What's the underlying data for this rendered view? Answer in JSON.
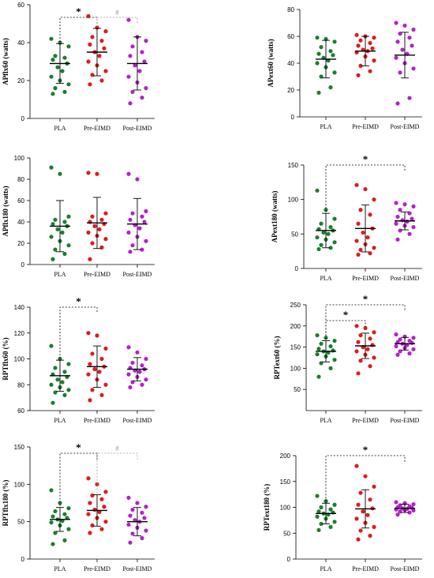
{
  "palette": {
    "PLA": "#1a7f2e",
    "Pre-EIMD": "#e01b1b",
    "Post-EIMD": "#b322c9"
  },
  "chart_data": [
    {
      "type": "scatter",
      "ylabel": "APflx60 (watts)",
      "categories": [
        "PLA",
        "Pre-EIMD",
        "Post-EIMD"
      ],
      "ylim": [
        0,
        60
      ],
      "yticks": [
        0,
        20,
        40,
        60
      ],
      "series": [
        {
          "values": [
            42,
            40,
            38,
            33,
            32,
            31,
            29,
            27,
            25,
            22,
            20,
            18,
            16,
            14,
            13
          ]
        },
        {
          "values": [
            54,
            48,
            46,
            43,
            41,
            39,
            37,
            35,
            33,
            30,
            28,
            25,
            23,
            20,
            18
          ]
        },
        {
          "values": [
            52,
            43,
            41,
            38,
            35,
            33,
            30,
            28,
            25,
            22,
            19,
            16,
            14,
            11,
            8
          ]
        }
      ],
      "mean": [
        29,
        35,
        29
      ],
      "sd": [
        10.5,
        12.5,
        14.0
      ],
      "annotations": [
        {
          "from": 0,
          "to": 1,
          "label": "*",
          "style": "star"
        },
        {
          "from": 1,
          "to": 2,
          "label": "#",
          "style": "hash"
        }
      ]
    },
    {
      "type": "scatter",
      "ylabel": "APext60 (watts)",
      "categories": [
        "PLA",
        "Pre-EIMD",
        "Post-EIMD"
      ],
      "ylim": [
        0,
        80
      ],
      "yticks": [
        0,
        20,
        40,
        60,
        80
      ],
      "series": [
        {
          "values": [
            59,
            58,
            56,
            52,
            49,
            47,
            46,
            44,
            42,
            40,
            37,
            33,
            30,
            22,
            18
          ]
        },
        {
          "values": [
            61,
            60,
            59,
            57,
            55,
            53,
            51,
            50,
            49,
            48,
            45,
            42,
            38,
            34,
            31
          ]
        },
        {
          "values": [
            70,
            68,
            65,
            62,
            59,
            56,
            53,
            50,
            47,
            44,
            40,
            36,
            33,
            14,
            10
          ]
        }
      ],
      "mean": [
        43,
        49,
        46
      ],
      "sd": [
        14.0,
        11.0,
        17.0
      ],
      "annotations": []
    },
    {
      "type": "scatter",
      "ylabel": "APflx180 (watts)",
      "categories": [
        "PLA",
        "Pre-EIMD",
        "Post-EIMD"
      ],
      "ylim": [
        0,
        100
      ],
      "yticks": [
        0,
        20,
        40,
        60,
        80,
        100
      ],
      "series": [
        {
          "values": [
            91,
            85,
            45,
            42,
            40,
            38,
            36,
            33,
            30,
            26,
            22,
            18,
            14,
            10,
            5
          ]
        },
        {
          "values": [
            86,
            85,
            48,
            45,
            42,
            40,
            38,
            36,
            33,
            30,
            27,
            24,
            20,
            16,
            5
          ]
        },
        {
          "values": [
            85,
            80,
            50,
            48,
            45,
            42,
            40,
            37,
            34,
            30,
            26,
            22,
            18,
            14,
            12
          ]
        }
      ],
      "mean": [
        36,
        39,
        38
      ],
      "sd": [
        24.0,
        24.0,
        24.0
      ],
      "annotations": []
    },
    {
      "type": "scatter",
      "ylabel": "APext180 (watts)",
      "categories": [
        "PLA",
        "Pre-EIMD",
        "Post-EIMD"
      ],
      "ylim": [
        0,
        150
      ],
      "yticks": [
        0,
        50,
        100,
        150
      ],
      "series": [
        {
          "values": [
            113,
            85,
            72,
            65,
            60,
            57,
            55,
            52,
            50,
            45,
            42,
            38,
            34,
            30,
            28
          ]
        },
        {
          "values": [
            121,
            115,
            100,
            85,
            78,
            65,
            58,
            52,
            45,
            40,
            35,
            30,
            27,
            22,
            20
          ]
        },
        {
          "values": [
            95,
            93,
            90,
            85,
            80,
            75,
            72,
            70,
            68,
            65,
            62,
            60,
            55,
            50,
            42
          ]
        }
      ],
      "mean": [
        55,
        58,
        69
      ],
      "sd": [
        25.0,
        34.0,
        13.0
      ],
      "annotations": [
        {
          "from": 0,
          "to": 2,
          "label": "*",
          "style": "star"
        }
      ]
    },
    {
      "type": "scatter",
      "ylabel": "RPTflx60 (%)",
      "categories": [
        "PLA",
        "Pre-EIMD",
        "Post-EIMD"
      ],
      "ylim": [
        60,
        140
      ],
      "yticks": [
        60,
        80,
        100,
        120,
        140
      ],
      "series": [
        {
          "values": [
            110,
            100,
            96,
            93,
            90,
            88,
            86,
            84,
            82,
            80,
            78,
            76,
            74,
            72,
            66
          ]
        },
        {
          "values": [
            120,
            118,
            108,
            104,
            100,
            96,
            94,
            92,
            90,
            88,
            84,
            80,
            76,
            72,
            68
          ]
        },
        {
          "values": [
            109,
            105,
            100,
            97,
            95,
            93,
            92,
            91,
            90,
            88,
            86,
            84,
            82,
            80,
            78
          ]
        }
      ],
      "mean": [
        87,
        94,
        92
      ],
      "sd": [
        12.0,
        16.0,
        9.0
      ],
      "annotations": [
        {
          "from": 0,
          "to": 1,
          "label": "*",
          "style": "star"
        }
      ]
    },
    {
      "type": "scatter",
      "ylabel": "RPText60 (%)",
      "categories": [
        "PLA",
        "Pre-EIMD",
        "Post-EIMD"
      ],
      "ylim": [
        0,
        250
      ],
      "yticks": [
        50,
        100,
        150,
        200,
        250
      ],
      "series": [
        {
          "values": [
            178,
            172,
            165,
            158,
            152,
            146,
            142,
            140,
            137,
            133,
            128,
            120,
            112,
            100,
            80
          ]
        },
        {
          "values": [
            200,
            195,
            185,
            178,
            170,
            162,
            155,
            150,
            145,
            140,
            132,
            125,
            118,
            105,
            88
          ]
        },
        {
          "values": [
            180,
            175,
            172,
            168,
            165,
            162,
            160,
            158,
            155,
            152,
            148,
            145,
            140,
            135,
            132
          ]
        }
      ],
      "mean": [
        140,
        153,
        158
      ],
      "sd": [
        25.0,
        30.0,
        15.0
      ],
      "annotations": [
        {
          "from": 0,
          "to": 1,
          "label": "*",
          "style": "star"
        },
        {
          "from": 0,
          "to": 2,
          "label": "*",
          "style": "star"
        }
      ]
    },
    {
      "type": "scatter",
      "ylabel": "RPTflx180 (%)",
      "categories": [
        "PLA",
        "Pre-EIMD",
        "Post-EIMD"
      ],
      "ylim": [
        0,
        150
      ],
      "yticks": [
        0,
        50,
        100,
        150
      ],
      "series": [
        {
          "values": [
            92,
            75,
            68,
            64,
            60,
            57,
            55,
            53,
            51,
            49,
            45,
            40,
            35,
            25,
            20
          ]
        },
        {
          "values": [
            108,
            100,
            90,
            85,
            80,
            75,
            70,
            66,
            63,
            60,
            55,
            50,
            45,
            40,
            35
          ]
        },
        {
          "values": [
            82,
            75,
            70,
            66,
            62,
            58,
            55,
            52,
            50,
            46,
            42,
            38,
            34,
            28,
            22
          ]
        }
      ],
      "mean": [
        53,
        65,
        50
      ],
      "sd": [
        16.0,
        21.0,
        19.0
      ],
      "annotations": [
        {
          "from": 0,
          "to": 1,
          "label": "*",
          "style": "star"
        },
        {
          "from": 1,
          "to": 2,
          "label": "#",
          "style": "hash"
        }
      ]
    },
    {
      "type": "scatter",
      "ylabel": "RPText180 (%)",
      "categories": [
        "PLA",
        "Pre-EIMD",
        "Post-EIMD"
      ],
      "ylim": [
        0,
        200
      ],
      "yticks": [
        0,
        50,
        100,
        150,
        200
      ],
      "series": [
        {
          "values": [
            122,
            112,
            105,
            100,
            96,
            92,
            90,
            88,
            86,
            82,
            78,
            72,
            68,
            62,
            56
          ]
        },
        {
          "values": [
            180,
            160,
            140,
            128,
            115,
            105,
            98,
            92,
            85,
            78,
            70,
            62,
            55,
            45,
            38
          ]
        },
        {
          "values": [
            110,
            108,
            106,
            104,
            102,
            100,
            99,
            98,
            97,
            96,
            95,
            94,
            92,
            90,
            86
          ]
        }
      ],
      "mean": [
        88,
        97,
        98
      ],
      "sd": [
        20.0,
        37.0,
        8.0
      ],
      "annotations": [
        {
          "from": 0,
          "to": 2,
          "label": "*",
          "style": "star"
        }
      ]
    }
  ]
}
